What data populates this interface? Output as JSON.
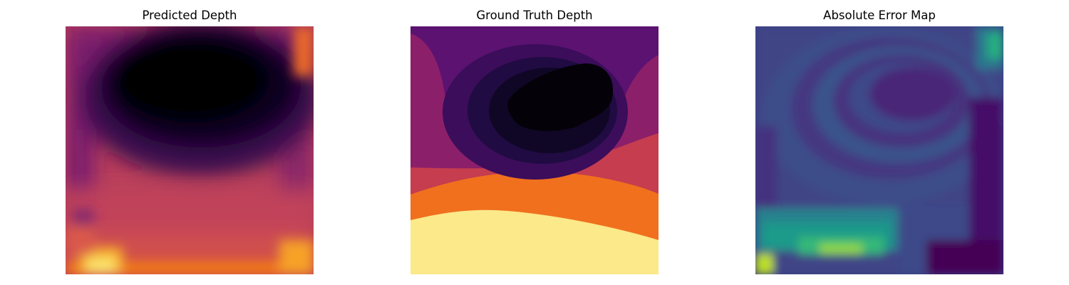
{
  "figure": {
    "panels": [
      {
        "title": "Predicted Depth",
        "colormap": "inferno"
      },
      {
        "title": "Ground Truth Depth",
        "colormap": "inferno"
      },
      {
        "title": "Absolute Error Map",
        "colormap": "viridis"
      }
    ]
  },
  "chart_data": [
    {
      "type": "heatmap",
      "title": "Predicted Depth",
      "colormap": "inferno",
      "axes": "off"
    },
    {
      "type": "heatmap",
      "title": "Ground Truth Depth",
      "colormap": "inferno",
      "axes": "off"
    },
    {
      "type": "heatmap",
      "title": "Absolute Error Map",
      "colormap": "viridis",
      "axes": "off"
    }
  ]
}
